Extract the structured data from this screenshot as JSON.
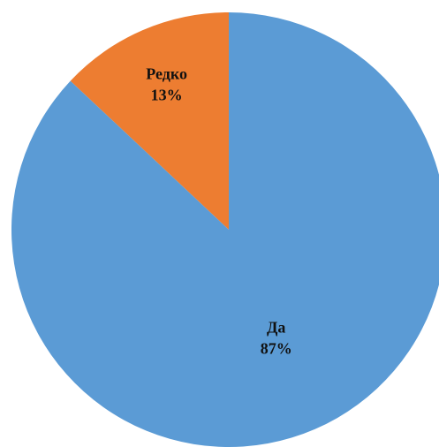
{
  "chart_data": {
    "type": "pie",
    "title": "",
    "slices": [
      {
        "label": "Да",
        "value": 87,
        "value_label": "87%",
        "color": "#5b9bd5"
      },
      {
        "label": "Редко",
        "value": 13,
        "value_label": "13%",
        "color": "#ed7d31"
      }
    ],
    "start_angle_deg": -90,
    "direction": "clockwise",
    "labels_inside": true,
    "legend": "none"
  }
}
